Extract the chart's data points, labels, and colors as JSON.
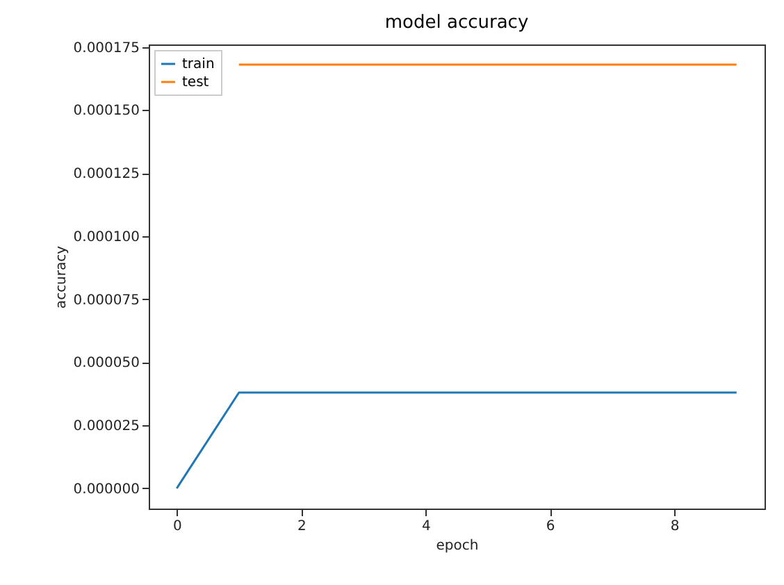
{
  "chart_data": {
    "type": "line",
    "title": "model accuracy",
    "xlabel": "epoch",
    "ylabel": "accuracy",
    "x": [
      0,
      1,
      2,
      3,
      4,
      5,
      6,
      7,
      8,
      9
    ],
    "series": [
      {
        "name": "train",
        "color": "#1f77b4",
        "values": [
          0,
          3.8e-05,
          3.8e-05,
          3.8e-05,
          3.8e-05,
          3.8e-05,
          3.8e-05,
          3.8e-05,
          3.8e-05,
          3.8e-05
        ]
      },
      {
        "name": "test",
        "color": "#ff7f0e",
        "values": [
          null,
          0.000168,
          0.000168,
          0.000168,
          0.000168,
          0.000168,
          0.000168,
          0.000168,
          0.000168,
          0.000168
        ]
      }
    ],
    "xlim": [
      -0.45,
      9.45
    ],
    "xticks": [
      0,
      2,
      4,
      6,
      8
    ],
    "ylim": [
      -8e-06,
      0.000176
    ],
    "yticks": [
      {
        "value": 0,
        "label": "0.000000"
      },
      {
        "value": 2.5e-05,
        "label": "0.000025"
      },
      {
        "value": 5e-05,
        "label": "0.000050"
      },
      {
        "value": 7.5e-05,
        "label": "0.000075"
      },
      {
        "value": 0.0001,
        "label": "0.000100"
      },
      {
        "value": 0.000125,
        "label": "0.000125"
      },
      {
        "value": 0.00015,
        "label": "0.000150"
      },
      {
        "value": 0.000175,
        "label": "0.000175"
      }
    ],
    "legend": "top left",
    "grid": false
  }
}
